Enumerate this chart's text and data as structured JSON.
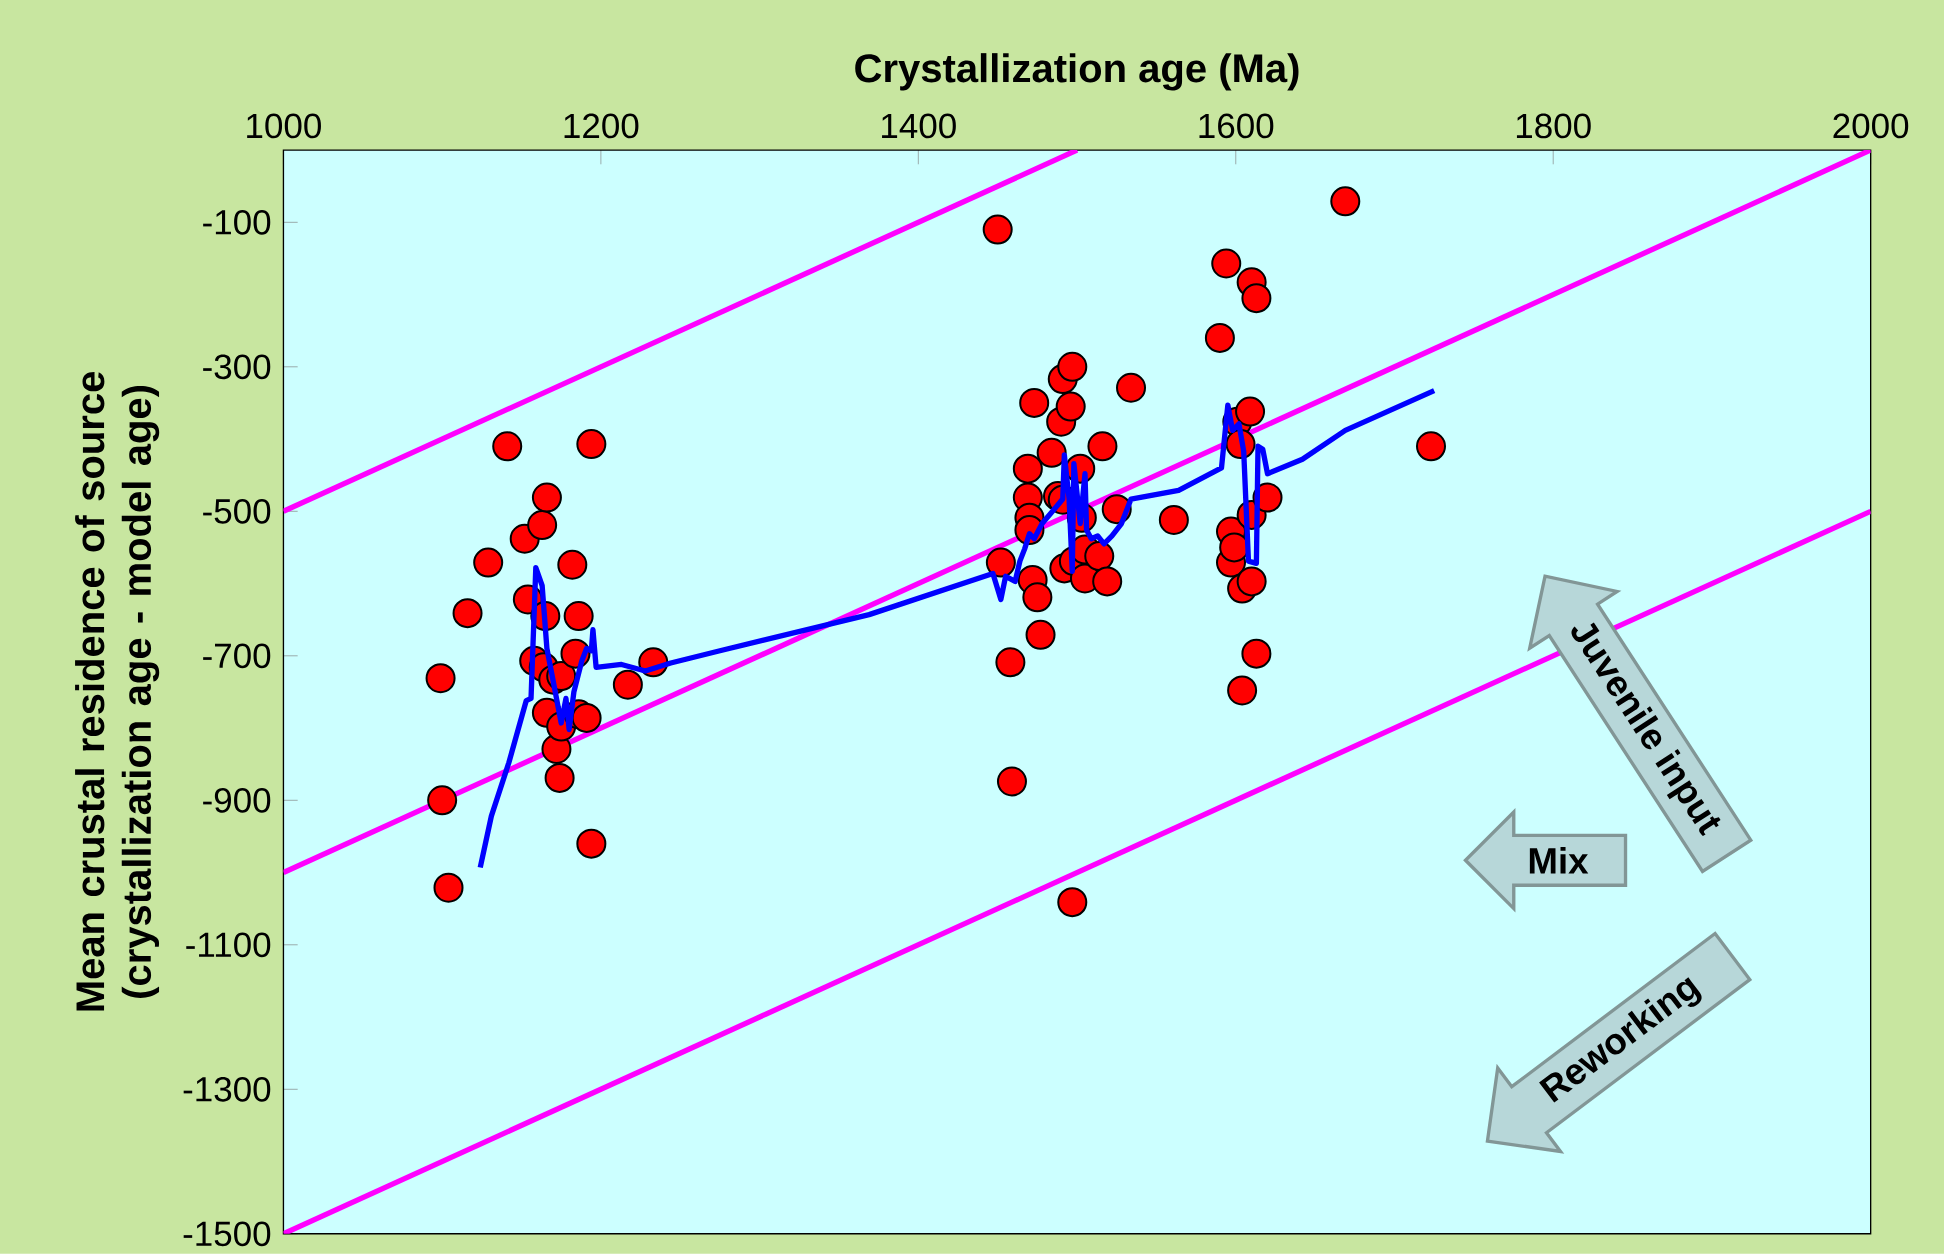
{
  "chart_data": {
    "type": "scatter",
    "xlabel": "Crystallization age (Ma)",
    "ylabel": "Mean crustal residence of source (crystallization age - model age)",
    "xlim": [
      1000,
      2000
    ],
    "ylim": [
      -1500,
      0
    ],
    "xticks": [
      1000,
      1200,
      1400,
      1600,
      1800,
      2000
    ],
    "yticks": [
      -100,
      -300,
      -500,
      -700,
      -900,
      -1100,
      -1300,
      -1500
    ],
    "grid": false,
    "series": [
      {
        "type": "line",
        "color": "#ff00ff",
        "marker": "none",
        "x": [
          1000,
          1500
        ],
        "values": [
          -500,
          0
        ]
      },
      {
        "type": "line",
        "color": "#ff00ff",
        "marker": "none",
        "x": [
          1000,
          2000
        ],
        "values": [
          -1000,
          0
        ]
      },
      {
        "type": "line",
        "color": "#ff00ff",
        "marker": "none",
        "x": [
          1000,
          2000
        ],
        "values": [
          -1500,
          -500
        ]
      },
      {
        "color": "#ff0000",
        "marker": "circle",
        "x": [
          1099,
          1100,
          1104,
          1116,
          1129,
          1141,
          1152,
          1154,
          1158,
          1163,
          1166,
          1165,
          1166,
          1164,
          1170,
          1172,
          1174,
          1175,
          1175,
          1182,
          1184,
          1186,
          1186,
          1191,
          1194,
          1194,
          1217,
          1233,
          1450,
          1452,
          1458,
          1459,
          1469,
          1469,
          1470,
          1470,
          1472,
          1473,
          1475,
          1477,
          1484,
          1488,
          1490,
          1491,
          1491,
          1492,
          1497,
          1496,
          1497,
          1498,
          1502,
          1503,
          1505,
          1505,
          1514,
          1516,
          1519,
          1525,
          1534,
          1561,
          1590,
          1594,
          1597,
          1597,
          1599,
          1601,
          1603,
          1604,
          1604,
          1609,
          1610,
          1610,
          1610,
          1613,
          1613,
          1620,
          1669,
          1723
        ],
        "values": [
          -731,
          -900,
          -1021,
          -641,
          -571,
          -410,
          -538,
          -622,
          -707,
          -519,
          -481,
          -645,
          -779,
          -716,
          -733,
          -829,
          -869,
          -798,
          -728,
          -574,
          -697,
          -645,
          -781,
          -786,
          -407,
          -960,
          -740,
          -709,
          -110,
          -571,
          -709,
          -874,
          -441,
          -481,
          -509,
          -526,
          -595,
          -350,
          -619,
          -671,
          -419,
          -479,
          -376,
          -317,
          -484,
          -579,
          -300,
          -355,
          -1041,
          -569,
          -441,
          -509,
          -553,
          -593,
          -562,
          -410,
          -597,
          -497,
          -329,
          -512,
          -260,
          -157,
          -571,
          -528,
          -550,
          -376,
          -407,
          -607,
          -748,
          -362,
          -183,
          -505,
          -597,
          -205,
          -697,
          -481,
          -71,
          -410
        ]
      },
      {
        "type": "line",
        "color": "#0000ff",
        "marker": "none",
        "x": [
          1124,
          1131,
          1142,
          1153,
          1156,
          1159,
          1163,
          1166,
          1169,
          1175,
          1178,
          1180,
          1183,
          1188,
          1191,
          1194,
          1195,
          1197,
          1213,
          1228,
          1244,
          1275,
          1369,
          1447,
          1452,
          1455,
          1461,
          1464,
          1467,
          1470,
          1473,
          1478,
          1488,
          1491,
          1492,
          1495,
          1497,
          1498,
          1502,
          1505,
          1506,
          1509,
          1513,
          1517,
          1522,
          1528,
          1534,
          1564,
          1591,
          1595,
          1598,
          1602,
          1605,
          1608,
          1613,
          1614,
          1617,
          1620,
          1642,
          1669,
          1725
        ],
        "values": [
          -993,
          -922,
          -848,
          -762,
          -759,
          -578,
          -603,
          -690,
          -724,
          -793,
          -759,
          -802,
          -750,
          -707,
          -690,
          -693,
          -664,
          -716,
          -712,
          -721,
          -710,
          -693,
          -643,
          -586,
          -622,
          -590,
          -597,
          -569,
          -552,
          -531,
          -538,
          -517,
          -491,
          -483,
          -422,
          -483,
          -583,
          -434,
          -517,
          -448,
          -526,
          -538,
          -534,
          -545,
          -534,
          -517,
          -483,
          -471,
          -440,
          -353,
          -388,
          -379,
          -417,
          -569,
          -572,
          -410,
          -414,
          -448,
          -428,
          -388,
          -333
        ]
      }
    ],
    "annotations": [
      "Juvenile input",
      "Mix",
      "Reworking"
    ]
  }
}
